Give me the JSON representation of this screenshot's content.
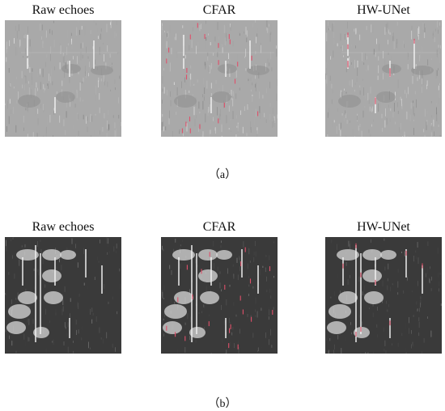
{
  "figure": {
    "rows": [
      {
        "id": "a",
        "caption": "（a）",
        "tone": "light",
        "panels": [
          {
            "title": "Raw echoes",
            "marks": "none"
          },
          {
            "title": "CFAR",
            "marks": "many"
          },
          {
            "title": "HW-UNet",
            "marks": "few"
          }
        ]
      },
      {
        "id": "b",
        "caption": "（b）",
        "tone": "dark",
        "panels": [
          {
            "title": "Raw echoes",
            "marks": "none"
          },
          {
            "title": "CFAR",
            "marks": "many"
          },
          {
            "title": "HW-UNet",
            "marks": "few"
          }
        ]
      }
    ],
    "colors": {
      "light_bg": "#a9a9a9",
      "dark_bg": "#3a3a3a",
      "detection_mark": "#e0506a",
      "page_bg": "#ffffff"
    }
  }
}
